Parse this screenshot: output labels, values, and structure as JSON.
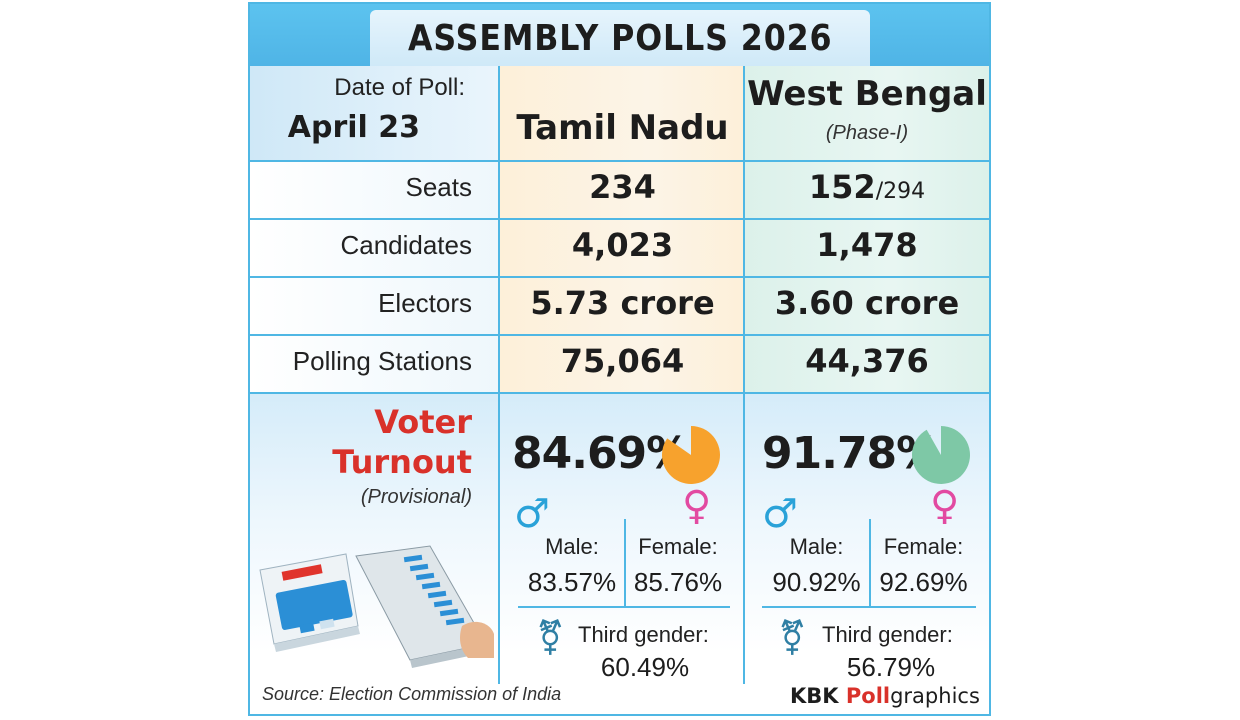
{
  "header": {
    "title": "ASSEMBLY POLLS 2026"
  },
  "poll_date": {
    "label": "Date of Poll:",
    "value": "April 23"
  },
  "states": [
    {
      "name": "Tamil Nadu",
      "phase": "",
      "seats": "234",
      "seats_total": "",
      "candidates": "4,023",
      "electors": "5.73 crore",
      "polling_stations": "75,064",
      "turnout": "84.69%",
      "turnout_fraction": 0.8469,
      "pie_color": "#f7a22d",
      "male_label": "Male:",
      "male": "83.57%",
      "female_label": "Female:",
      "female": "85.76%",
      "third_label": "Third gender:",
      "third": "60.49%"
    },
    {
      "name": "West Bengal",
      "phase": "(Phase-I)",
      "seats": "152",
      "seats_total": "/294",
      "candidates": "1,478",
      "electors": "3.60 crore",
      "polling_stations": "44,376",
      "turnout": "91.78%",
      "turnout_fraction": 0.9178,
      "pie_color": "#7ec8a6",
      "male_label": "Male:",
      "male": "90.92%",
      "female_label": "Female:",
      "female": "92.69%",
      "third_label": "Third gender:",
      "third": "56.79%"
    }
  ],
  "row_labels": {
    "seats": "Seats",
    "candidates": "Candidates",
    "electors": "Electors",
    "polling_stations": "Polling Stations"
  },
  "turnout_section": {
    "title_line1": "Voter",
    "title_line2": "Turnout",
    "subtitle": "(Provisional)"
  },
  "icons": {
    "male": "male-icon",
    "female": "female-icon",
    "third_gender": "transgender-icon",
    "evm": "voting-machine-illustration"
  },
  "footer": {
    "source": "Source: Election Commission of India",
    "brand_part1": "KBK ",
    "brand_part2": "Poll",
    "brand_part3": "graphics"
  },
  "colors": {
    "accent_border": "#4fb7e4",
    "turnout_title": "#d9312a",
    "male_symbol": "#2aa2d8",
    "female_symbol": "#e24aa1"
  }
}
